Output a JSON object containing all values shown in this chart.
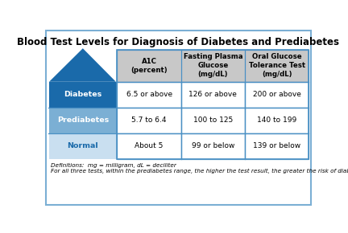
{
  "title": "Blood Test Levels for Diagnosis of Diabetes and Prediabetes",
  "col_headers": [
    "A1C\n(percent)",
    "Fasting Plasma\nGlucose\n(mg/dL)",
    "Oral Glucose\nTolerance Test\n(mg/dL)"
  ],
  "row_labels": [
    "Diabetes",
    "Prediabetes",
    "Normal"
  ],
  "row_colors": [
    "#1A6AAA",
    "#7BAFD4",
    "#C9DFF0"
  ],
  "row_label_text_colors": [
    "#FFFFFF",
    "#FFFFFF",
    "#1A6AAA"
  ],
  "cell_data": [
    [
      "6.5 or above",
      "126 or above",
      "200 or above"
    ],
    [
      "5.7 to 6.4",
      "100 to 125",
      "140 to 199"
    ],
    [
      "About 5",
      "99 or below",
      "139 or below"
    ]
  ],
  "footnote_line1": "Definitions:  mg = milligram, dL = deciliter",
  "footnote_line2": "For all three tests, within the prediabetes range, the higher the test result, the greater the risk of diabetes.",
  "arrow_color": "#1A6AAA",
  "header_bg": "#C8C8C8",
  "cell_bg": "#FFFFFF",
  "border_color": "#4A90C4",
  "background_color": "#FFFFFF",
  "outer_border_color": "#7BAFD4",
  "title_fontsize": 8.5,
  "header_fontsize": 6.2,
  "cell_fontsize": 6.5,
  "label_fontsize": 6.8,
  "footnote_fontsize": 5.2
}
